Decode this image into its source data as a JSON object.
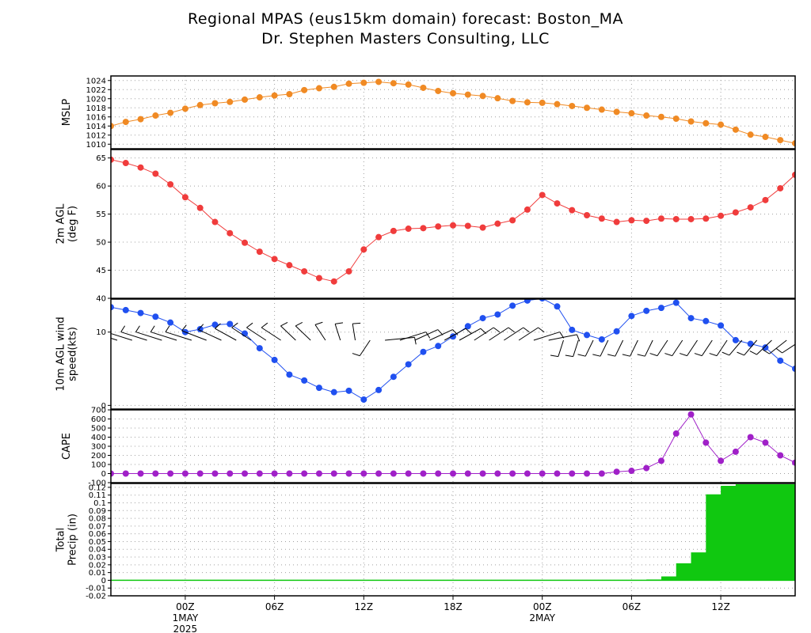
{
  "title_line1": "Regional MPAS (eus15km domain) forecast: Boston_MA",
  "title_line2": "Dr. Stephen Masters Consulting, LLC",
  "colors": {
    "mslp": "#f08a24",
    "temp": "#f03c3c",
    "wind": "#2050f0",
    "cape": "#a020c8",
    "precip": "#10c810",
    "grid": "#a0a0a0"
  },
  "x_axis": {
    "start_hour": 0,
    "end_hour": 46,
    "ticks": [
      {
        "hour": 5,
        "label": "00Z",
        "sub1": "1MAY",
        "sub2": "2025"
      },
      {
        "hour": 11,
        "label": "06Z"
      },
      {
        "hour": 17,
        "label": "12Z"
      },
      {
        "hour": 23,
        "label": "18Z"
      },
      {
        "hour": 29,
        "label": "00Z",
        "sub1": "2MAY"
      },
      {
        "hour": 35,
        "label": "06Z"
      },
      {
        "hour": 41,
        "label": "12Z"
      }
    ]
  },
  "chart_data": [
    {
      "type": "line",
      "id": "mslp",
      "ylabel": [
        "MSLP"
      ],
      "ylim": [
        1009,
        1025
      ],
      "yticks": [
        1010,
        1012,
        1014,
        1016,
        1018,
        1020,
        1022,
        1024
      ],
      "ytick_labels": [
        "1010",
        "1012",
        "1014",
        "1016",
        "1018",
        "1020",
        "1022",
        "1024"
      ],
      "values": [
        1014.0,
        1014.9,
        1015.5,
        1016.3,
        1016.9,
        1017.8,
        1018.6,
        1019.0,
        1019.3,
        1019.8,
        1020.3,
        1020.7,
        1021.0,
        1021.9,
        1022.3,
        1022.6,
        1023.3,
        1023.5,
        1023.7,
        1023.4,
        1023.1,
        1022.4,
        1021.7,
        1021.2,
        1020.9,
        1020.6,
        1020.1,
        1019.5,
        1019.2,
        1019.1,
        1018.8,
        1018.4,
        1018.0,
        1017.6,
        1017.1,
        1016.8,
        1016.3,
        1016.0,
        1015.6,
        1015.0,
        1014.6,
        1014.3,
        1013.2,
        1012.1,
        1011.6,
        1010.9,
        1010.2
      ]
    },
    {
      "type": "line",
      "id": "temp",
      "ylabel": [
        "2m AGL",
        "(deg F)"
      ],
      "ylim": [
        40,
        66.5
      ],
      "yticks": [
        40,
        45,
        50,
        55,
        60,
        65
      ],
      "ytick_labels": [
        "40",
        "45",
        "50",
        "55",
        "60",
        "65"
      ],
      "values": [
        64.7,
        64.1,
        63.3,
        62.2,
        60.3,
        58.0,
        56.1,
        53.6,
        51.6,
        49.9,
        48.3,
        47.0,
        45.9,
        44.8,
        43.6,
        43.0,
        44.8,
        48.7,
        50.9,
        52.0,
        52.4,
        52.5,
        52.8,
        53.0,
        52.9,
        52.6,
        53.3,
        53.9,
        55.8,
        58.4,
        56.9,
        55.7,
        54.8,
        54.2,
        53.6,
        53.9,
        53.8,
        54.2,
        54.1,
        54.1,
        54.2,
        54.7,
        55.3,
        56.2,
        57.5,
        59.6,
        62.0
      ]
    },
    {
      "type": "line",
      "id": "wind",
      "ylabel": [
        "10m AGL wind",
        "speed(kts)"
      ],
      "ylim": [
        -0.5,
        14.5
      ],
      "yticks": [
        0,
        10
      ],
      "ytick_labels": [
        "0",
        "10"
      ],
      "values": [
        13.4,
        13.0,
        12.6,
        12.1,
        11.3,
        10.0,
        10.4,
        11.0,
        11.1,
        9.8,
        7.8,
        6.2,
        4.2,
        3.4,
        2.4,
        1.8,
        2.0,
        0.8,
        2.1,
        3.9,
        5.6,
        7.3,
        8.1,
        9.4,
        10.8,
        11.9,
        12.4,
        13.6,
        14.3,
        14.6,
        13.5,
        10.3,
        9.6,
        9.0,
        10.1,
        12.2,
        12.9,
        13.3,
        14.0,
        11.9,
        11.5,
        10.9,
        8.9,
        8.4,
        7.9,
        6.1,
        5.0
      ]
    },
    {
      "type": "line",
      "id": "cape",
      "ylabel": [
        "CAPE"
      ],
      "ylim": [
        -100,
        700
      ],
      "yticks": [
        -100,
        0,
        100,
        200,
        300,
        400,
        500,
        600,
        700
      ],
      "ytick_labels": [
        "-100",
        "0",
        "100",
        "200",
        "300",
        "400",
        "500",
        "600",
        "700"
      ],
      "values": [
        0,
        0,
        0,
        0,
        0,
        0,
        0,
        0,
        0,
        0,
        0,
        0,
        0,
        0,
        0,
        0,
        0,
        0,
        0,
        0,
        0,
        0,
        0,
        0,
        0,
        0,
        0,
        0,
        0,
        0,
        0,
        0,
        0,
        0,
        20,
        30,
        60,
        140,
        440,
        650,
        340,
        140,
        240,
        400,
        340,
        200,
        120
      ]
    },
    {
      "type": "area",
      "id": "precip",
      "ylabel": [
        "Total",
        "Precip (in)"
      ],
      "ylim": [
        -0.02,
        0.125
      ],
      "yticks": [
        -0.02,
        -0.01,
        0,
        0.01,
        0.02,
        0.03,
        0.04,
        0.05,
        0.06,
        0.07,
        0.08,
        0.09,
        0.1,
        0.11,
        0.12
      ],
      "ytick_labels": [
        "-0.02",
        "-0.01",
        "0",
        "0.01",
        "0.02",
        "0.03",
        "0.04",
        "0.05",
        "0.06",
        "0.07",
        "0.08",
        "0.09",
        "0.1",
        "0.11",
        "0.12"
      ],
      "values": [
        0,
        0,
        0,
        0,
        0,
        0,
        0,
        0,
        0,
        0,
        0,
        0,
        0,
        0,
        0,
        0,
        0,
        0,
        0,
        0,
        0,
        0,
        0,
        0,
        0,
        0,
        0,
        0,
        0,
        0,
        0,
        0,
        0,
        0,
        0,
        0,
        0.001,
        0.005,
        0.022,
        0.036,
        0.111,
        0.122,
        0.124,
        0.124,
        0.124,
        0.124,
        0.124
      ]
    },
    {
      "type": "wind_barbs",
      "id": "wind_barbs",
      "direction_deg": [
        300,
        300,
        300,
        300,
        300,
        300,
        305,
        310,
        315,
        320,
        320,
        320,
        330,
        330,
        340,
        350,
        355,
        200,
        80,
        60,
        50,
        50,
        45,
        45,
        40,
        40,
        40,
        40,
        60,
        70,
        190,
        190,
        195,
        195,
        195,
        195,
        195,
        200,
        200,
        200,
        200,
        200,
        205,
        205,
        210,
        215,
        220
      ]
    }
  ]
}
